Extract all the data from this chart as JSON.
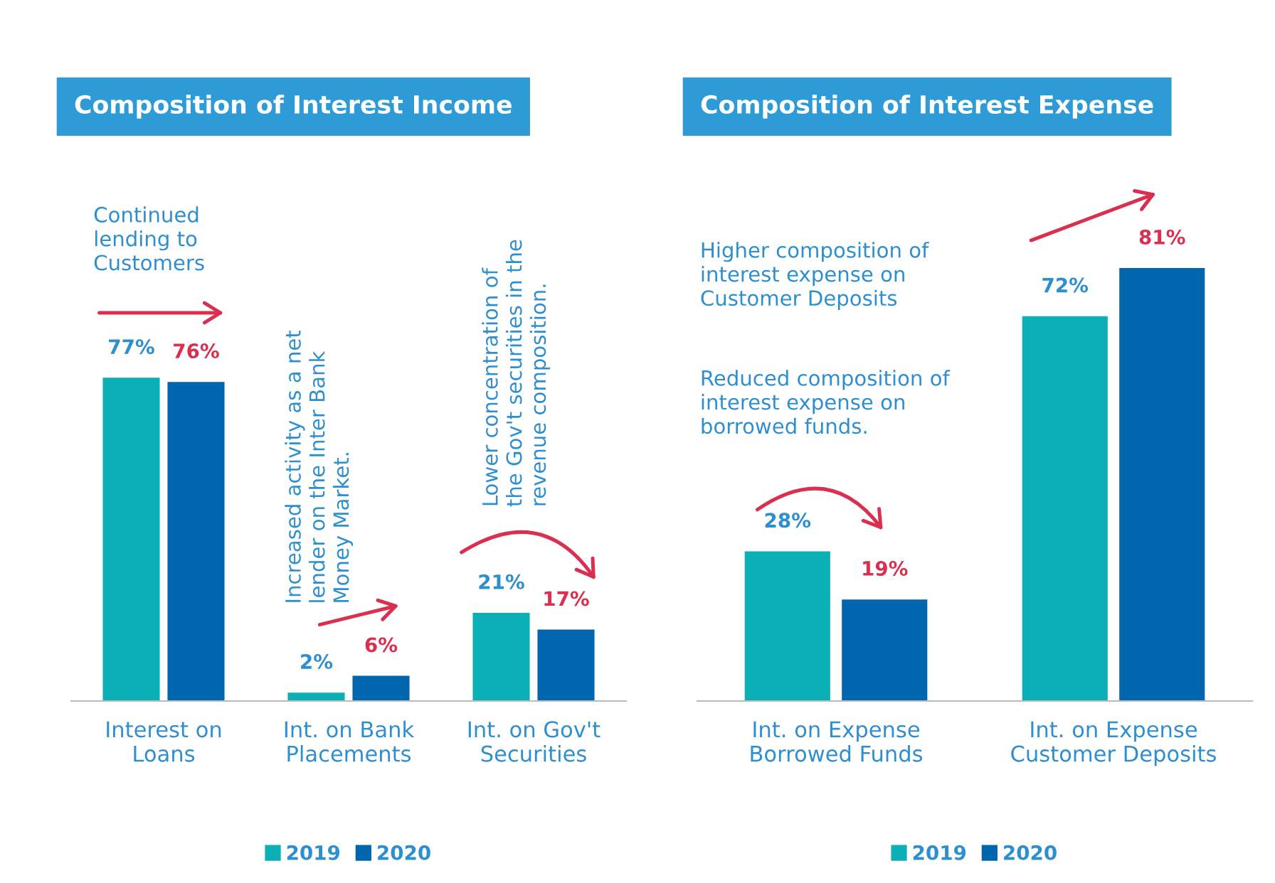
{
  "chart_data": [
    {
      "type": "bar",
      "title": "Composition of Interest Income",
      "categories": [
        "Interest on\nLoans",
        "Int. on Bank\nPlacements",
        "Int. on Gov't\nSecurities"
      ],
      "series": [
        {
          "name": "2019",
          "color": "#0ab0b5",
          "values": [
            77,
            2,
            21
          ],
          "value_labels": [
            "77%",
            "2%",
            "21%"
          ]
        },
        {
          "name": "2020",
          "color": "#0066ad",
          "values": [
            76,
            6,
            17
          ],
          "value_labels": [
            "76%",
            "6%",
            "17%"
          ]
        }
      ],
      "annotations": [
        "Continued\nlending to\nCustomers",
        "Increased activity as a net\nlender on the Inter Bank\nMoney Market.",
        "Lower concentration of\nthe Gov't securities in the\nrevenue composition."
      ],
      "legend": "bottom",
      "grid": false
    },
    {
      "type": "bar",
      "title": "Composition of Interest Expense",
      "categories": [
        "Int. on Expense\nBorrowed Funds",
        "Int. on Expense\nCustomer Deposits"
      ],
      "series": [
        {
          "name": "2019",
          "color": "#0ab0b5",
          "values": [
            28,
            72
          ],
          "value_labels": [
            "28%",
            "72%"
          ]
        },
        {
          "name": "2020",
          "color": "#0066ad",
          "values": [
            19,
            81
          ],
          "value_labels": [
            "19%",
            "81%"
          ]
        }
      ],
      "annotations": [
        "Higher composition of\ninterest expense on\nCustomer Deposits",
        "Reduced composition of\ninterest expense on\nborrowed funds."
      ],
      "legend": "bottom",
      "grid": false
    }
  ]
}
